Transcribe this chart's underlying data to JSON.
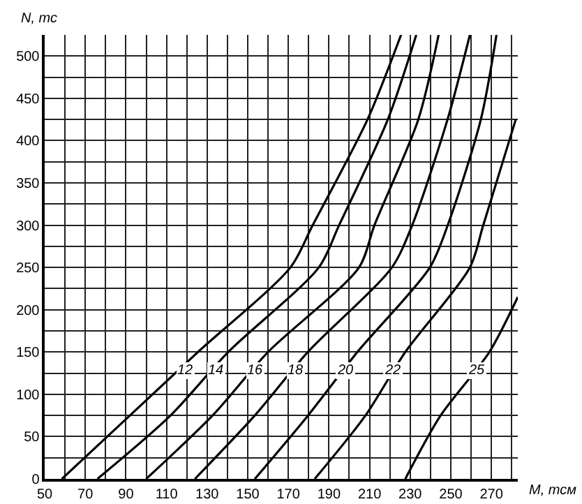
{
  "chart_data": {
    "type": "line",
    "xlabel": "M, тсм",
    "ylabel": "N, тс",
    "xlim": [
      50,
      283
    ],
    "ylim": [
      0,
      525
    ],
    "xticks": [
      50,
      {
        "value": 60,
        "label": null
      },
      70,
      {
        "value": 80,
        "label": null
      },
      90,
      {
        "value": 100,
        "label": null
      },
      110,
      {
        "value": 120,
        "label": null
      },
      130,
      {
        "value": 140,
        "label": null
      },
      150,
      {
        "value": 160,
        "label": null
      },
      170,
      {
        "value": 180,
        "label": null
      },
      190,
      {
        "value": 200,
        "label": null
      },
      210,
      {
        "value": 220,
        "label": null
      },
      230,
      {
        "value": 240,
        "label": null
      },
      250,
      {
        "value": 260,
        "label": null
      },
      270,
      {
        "value": 280,
        "label": null
      }
    ],
    "yticks": [
      0,
      {
        "value": 25,
        "label": null
      },
      50,
      {
        "value": 75,
        "label": null
      },
      100,
      {
        "value": 125,
        "label": null
      },
      150,
      {
        "value": 175,
        "label": null
      },
      200,
      {
        "value": 225,
        "label": null
      },
      250,
      {
        "value": 275,
        "label": null
      },
      300,
      {
        "value": 325,
        "label": null
      },
      350,
      {
        "value": 375,
        "label": null
      },
      400,
      {
        "value": 425,
        "label": null
      },
      450,
      {
        "value": 475,
        "label": null
      },
      500
    ],
    "grid": true,
    "legend": false,
    "marker": "none",
    "line_style": "solid",
    "series": [
      {
        "name": "12",
        "color": "#000000",
        "x": [
          58.5,
          92,
          125.5,
          171,
          182,
          209,
          225.5
        ],
        "values": [
          0,
          75,
          150,
          250,
          300,
          425,
          525
        ]
      },
      {
        "name": "14",
        "color": "#000000",
        "x": [
          76,
          112,
          140.4,
          185,
          195,
          219,
          233
        ],
        "values": [
          0,
          75,
          150,
          250,
          300,
          425,
          525
        ]
      },
      {
        "name": "16",
        "color": "#000000",
        "x": [
          100,
          132.7,
          160,
          204.8,
          212.4,
          234,
          244
        ],
        "values": [
          0,
          75,
          150,
          250,
          300,
          425,
          525
        ]
      },
      {
        "name": "18",
        "color": "#000000",
        "x": [
          124,
          153.5,
          179.6,
          221,
          231,
          248.4,
          259.4
        ],
        "values": [
          0,
          75,
          150,
          250,
          300,
          425,
          525
        ]
      },
      {
        "name": "20",
        "color": "#000000",
        "x": [
          153.5,
          179.7,
          204,
          239.7,
          248.5,
          264.8,
          272.5
        ],
        "values": [
          0,
          75,
          150,
          250,
          300,
          425,
          525
        ]
      },
      {
        "name": "22",
        "color": "#000000",
        "x": [
          183,
          208,
          227.6,
          259.4,
          266,
          282
        ],
        "values": [
          0,
          75,
          150,
          250,
          300,
          425
        ]
      },
      {
        "name": "25",
        "color": "#000000",
        "x": [
          227.6,
          245,
          269,
          283
        ],
        "values": [
          0,
          75,
          150,
          215
        ]
      }
    ]
  }
}
